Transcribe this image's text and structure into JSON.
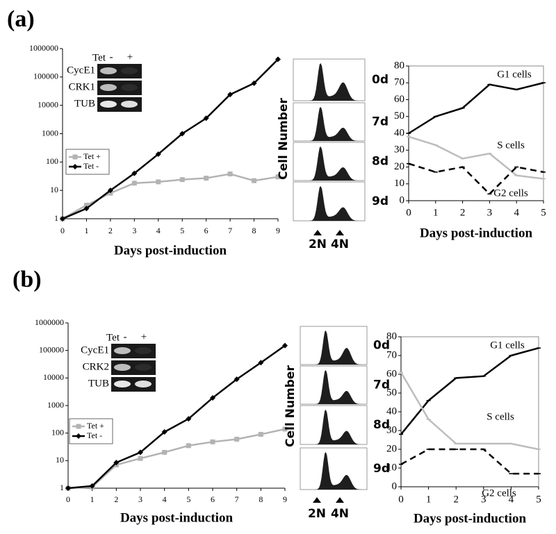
{
  "chart_data": [
    {
      "type": "line",
      "xlabel": "Days post-induction",
      "log_y": true,
      "x": [
        0,
        1,
        2,
        3,
        4,
        5,
        6,
        7,
        8,
        9
      ],
      "xlim": [
        0,
        9
      ],
      "xticks": [
        0,
        1,
        2,
        3,
        4,
        5,
        6,
        7,
        8,
        9
      ],
      "ylim": [
        1,
        1000000
      ],
      "yticks": [
        1,
        10,
        100,
        1000,
        10000,
        100000,
        1000000
      ],
      "legend": true,
      "series": [
        {
          "name": "Tet +",
          "color": "#b3b3b3",
          "marker": "square",
          "dash": false,
          "values": [
            1,
            3,
            8,
            18,
            20,
            24,
            27,
            38,
            22,
            30
          ]
        },
        {
          "name": "Tet -",
          "color": "#000000",
          "marker": "diamond",
          "dash": false,
          "values": [
            1,
            2.3,
            10,
            40,
            190,
            1000,
            3500,
            24000,
            60000,
            420000
          ]
        }
      ]
    },
    {
      "type": "line",
      "xlabel": "Days post-induction",
      "log_y": false,
      "x": [
        0,
        1,
        2,
        3,
        4,
        5
      ],
      "xlim": [
        0,
        5
      ],
      "xticks": [
        0,
        1,
        2,
        3,
        4,
        5
      ],
      "ylim": [
        0,
        80
      ],
      "yticks": [
        0,
        10,
        20,
        30,
        40,
        50,
        60,
        70,
        80
      ],
      "legend": false,
      "series": [
        {
          "name": "G1 cells",
          "color": "#000000",
          "dash": false,
          "values": [
            40,
            50,
            55,
            69,
            66,
            70
          ]
        },
        {
          "name": "S cells",
          "color": "#bdbdbd",
          "dash": false,
          "values": [
            38,
            33,
            25,
            28,
            15,
            13
          ]
        },
        {
          "name": "G2 cells",
          "color": "#000000",
          "dash": true,
          "values": [
            22,
            17,
            20,
            4,
            20,
            17
          ]
        }
      ]
    },
    {
      "type": "line",
      "xlabel": "Days post-induction",
      "log_y": true,
      "x": [
        0,
        1,
        2,
        3,
        4,
        5,
        6,
        7,
        8,
        9
      ],
      "xlim": [
        0,
        9
      ],
      "xticks": [
        0,
        1,
        2,
        3,
        4,
        5,
        6,
        7,
        8,
        9
      ],
      "ylim": [
        1,
        1000000
      ],
      "yticks": [
        1,
        10,
        100,
        1000,
        10000,
        100000,
        1000000
      ],
      "legend": true,
      "series": [
        {
          "name": "Tet +",
          "color": "#b3b3b3",
          "marker": "square",
          "dash": false,
          "values": [
            1,
            1.1,
            7,
            12,
            20,
            35,
            48,
            60,
            90,
            140
          ]
        },
        {
          "name": "Tet -",
          "color": "#000000",
          "marker": "diamond",
          "dash": false,
          "values": [
            1,
            1.2,
            8.5,
            20,
            110,
            330,
            1900,
            9000,
            36000,
            150000
          ]
        }
      ]
    },
    {
      "type": "line",
      "xlabel": "Days post-induction",
      "log_y": false,
      "x": [
        0,
        1,
        2,
        3,
        4,
        5
      ],
      "xlim": [
        0,
        5
      ],
      "xticks": [
        0,
        1,
        2,
        3,
        4,
        5
      ],
      "ylim": [
        0,
        80
      ],
      "yticks": [
        0,
        10,
        20,
        30,
        40,
        50,
        60,
        70,
        80
      ],
      "legend": false,
      "series": [
        {
          "name": "G1 cells",
          "color": "#000000",
          "dash": false,
          "values": [
            28,
            46,
            58,
            59,
            70,
            74
          ]
        },
        {
          "name": "S cells",
          "color": "#bdbdbd",
          "dash": false,
          "values": [
            61,
            36,
            23,
            23,
            23,
            20
          ]
        },
        {
          "name": "G2 cells",
          "color": "#000000",
          "dash": true,
          "values": [
            12,
            20,
            20,
            20,
            7,
            7
          ]
        }
      ]
    }
  ],
  "figure": {
    "panel_labels": [
      "(a)",
      "(b)"
    ],
    "gels": [
      {
        "header": "Tet",
        "lanes": [
          "-",
          "+"
        ],
        "rows": [
          "CycE1",
          "CRK1",
          "TUB"
        ]
      },
      {
        "header": "Tet",
        "lanes": [
          "-",
          "+"
        ],
        "rows": [
          "CycE1",
          "CRK2",
          "TUB"
        ]
      }
    ],
    "flows": [
      {
        "ylabel": "Cell Number",
        "days": [
          "0d",
          "7d",
          "8d",
          "9d"
        ],
        "markers": [
          "2N",
          "4N"
        ]
      },
      {
        "ylabel": "Cell Number",
        "days": [
          "0d",
          "7d",
          "8d",
          "9d"
        ],
        "markers": [
          "2N",
          "4N"
        ]
      }
    ]
  }
}
